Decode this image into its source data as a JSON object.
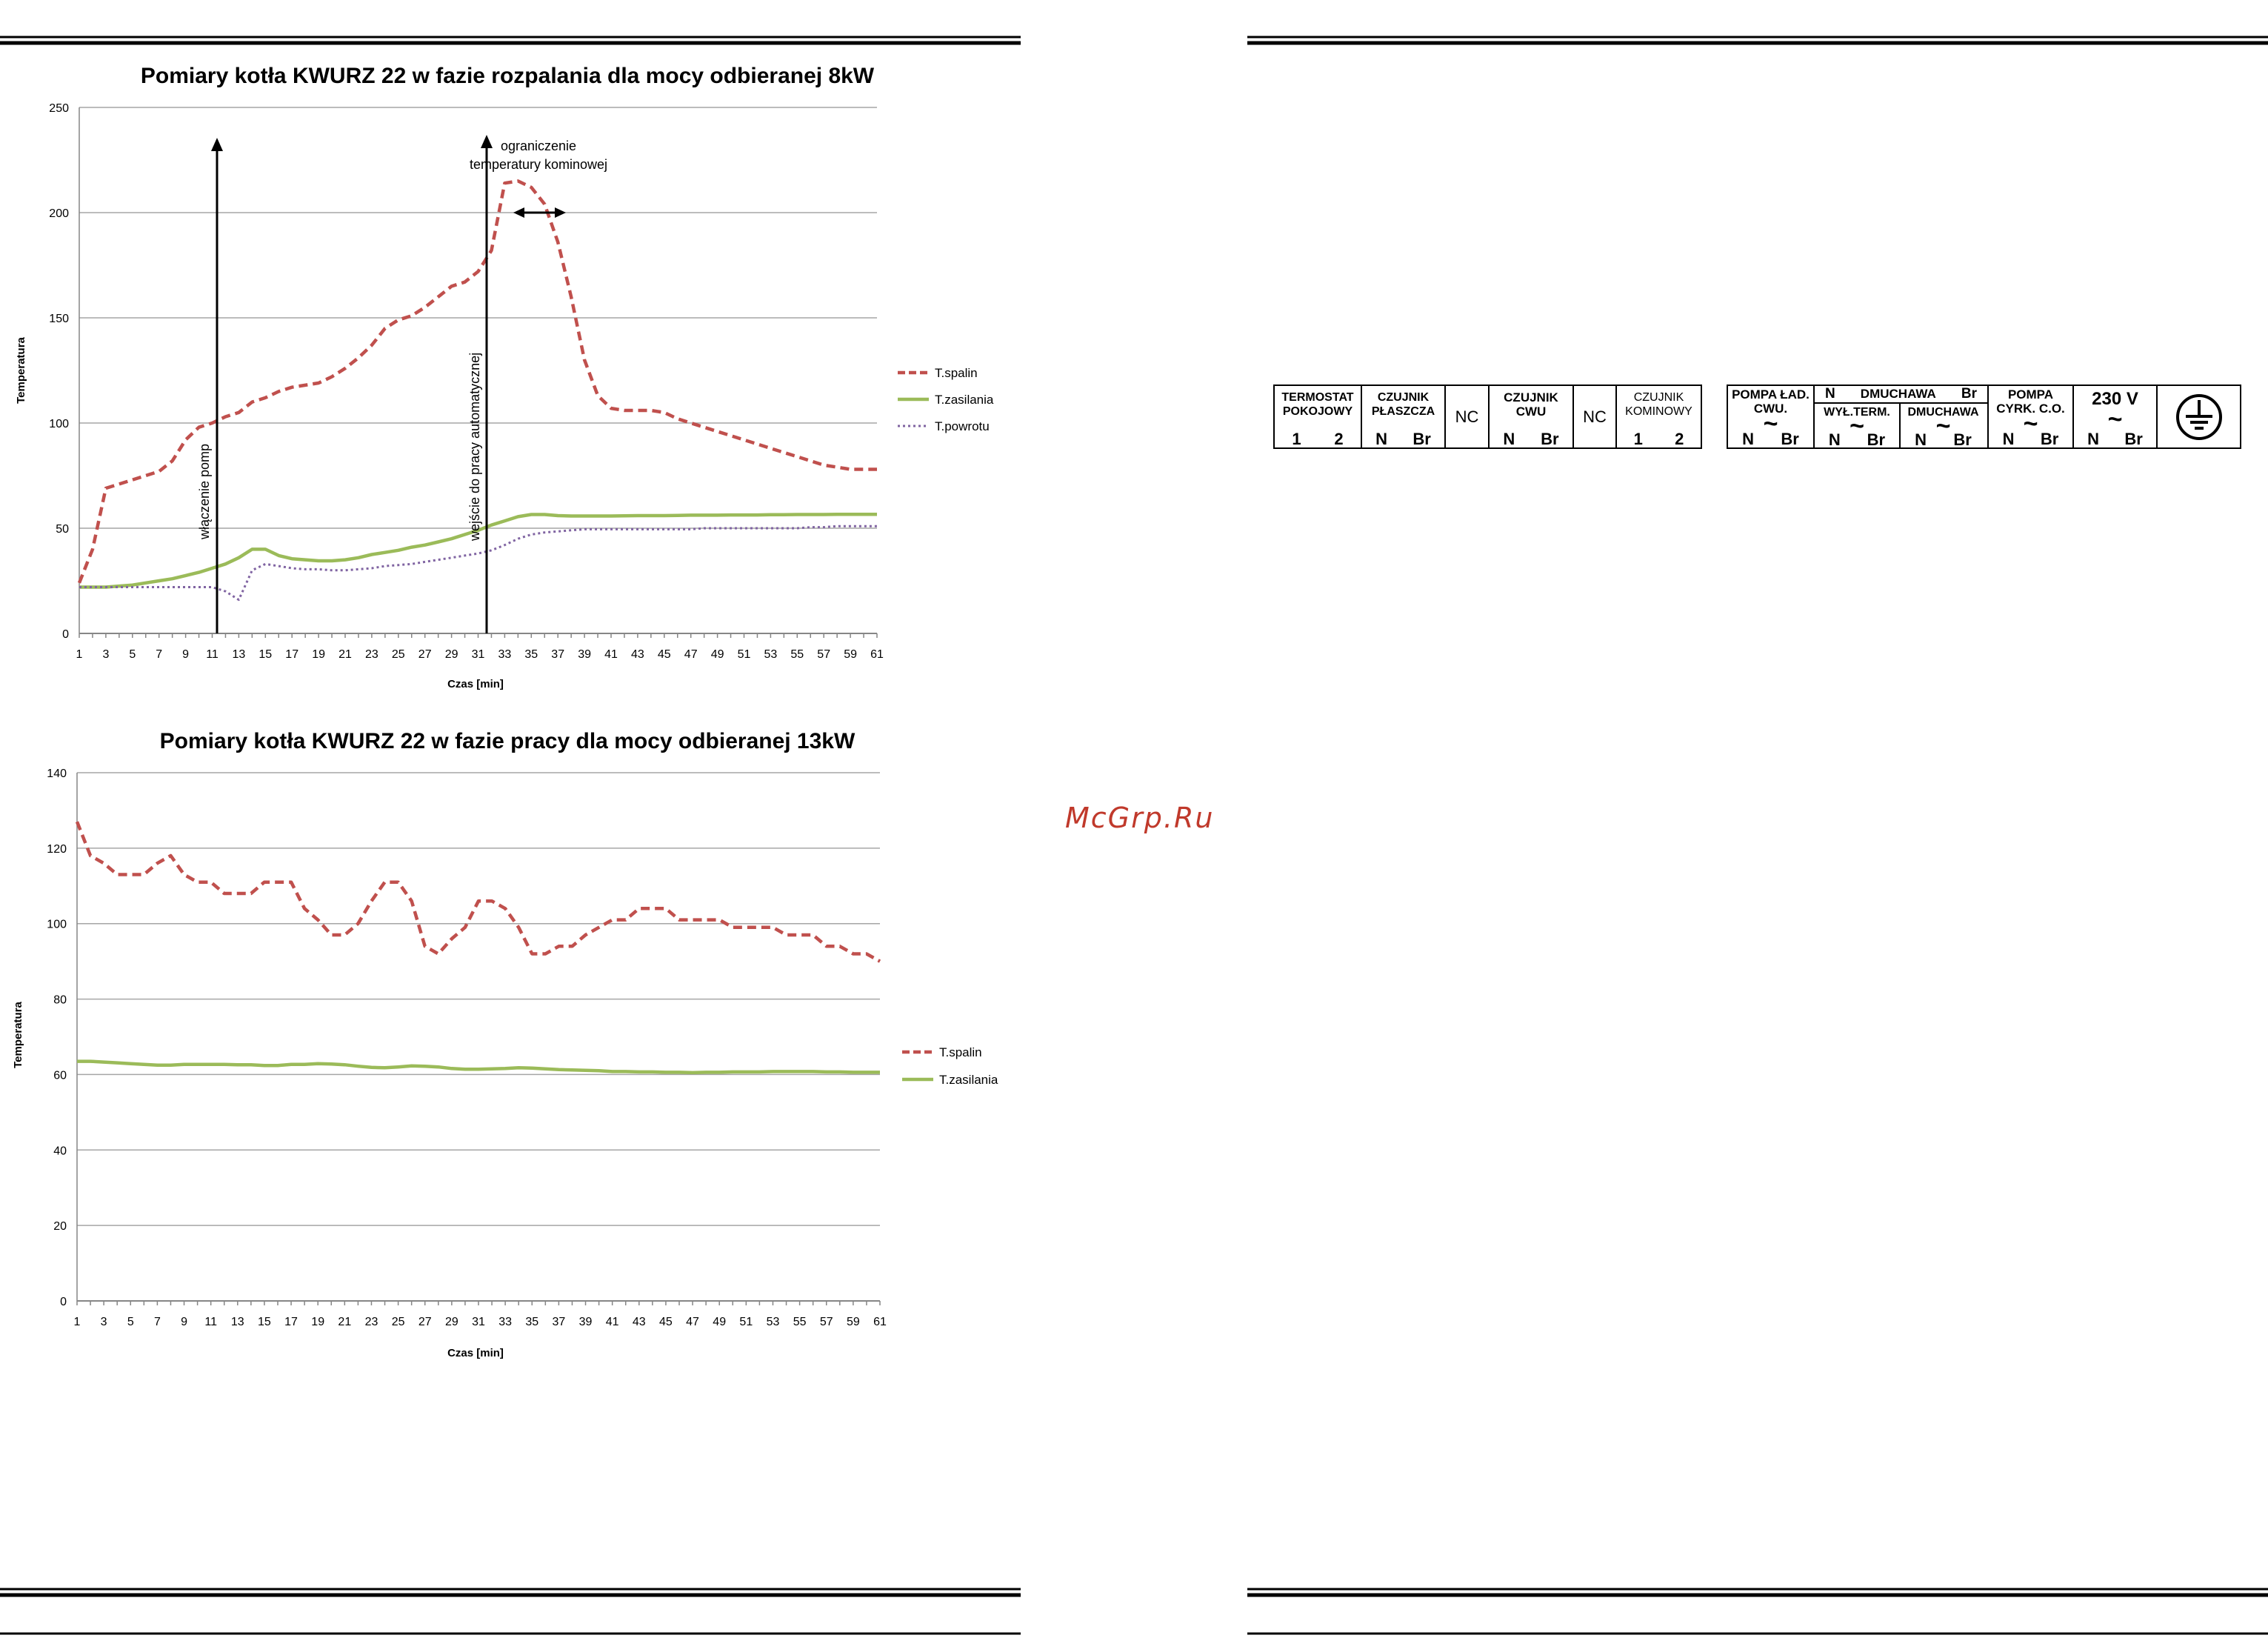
{
  "watermark": "McGrp.Ru",
  "chart_data": [
    {
      "type": "line",
      "title": "Pomiary kotła KWURZ 22 w fazie rozpalania dla mocy odbieranej 8kW",
      "xlabel": "Czas [min]",
      "ylabel": "Temperatura",
      "ylim": [
        0,
        250
      ],
      "yticks": [
        0,
        50,
        100,
        150,
        200,
        250
      ],
      "grid": true,
      "legend": "right",
      "x": [
        1,
        2,
        3,
        4,
        5,
        6,
        7,
        8,
        9,
        10,
        11,
        12,
        13,
        14,
        15,
        16,
        17,
        18,
        19,
        20,
        21,
        22,
        23,
        24,
        25,
        26,
        27,
        28,
        29,
        30,
        31,
        32,
        33,
        34,
        35,
        36,
        37,
        38,
        39,
        40,
        41,
        42,
        43,
        44,
        45,
        46,
        47,
        48,
        49,
        50,
        51,
        52,
        53,
        54,
        55,
        56,
        57,
        58,
        59,
        60,
        61
      ],
      "series": [
        {
          "name": "T.spalin",
          "color": "#c0504d",
          "dash": "12,7",
          "values": [
            24,
            40,
            69,
            71,
            73,
            75,
            77,
            82,
            92,
            98,
            100,
            103,
            105,
            110,
            112,
            115,
            117,
            118,
            119,
            122,
            126,
            131,
            137,
            145,
            149,
            151,
            155,
            160,
            165,
            167,
            172,
            182,
            214,
            215,
            212,
            204,
            186,
            160,
            130,
            113,
            107,
            106,
            106,
            106,
            105,
            102,
            100,
            98,
            96,
            94,
            92,
            90,
            88,
            86,
            84,
            82,
            80,
            79,
            78,
            78,
            78
          ]
        },
        {
          "name": "T.zasilania",
          "color": "#9bbb59",
          "dash": "",
          "values": [
            22,
            22,
            22,
            22.5,
            23,
            24,
            25,
            26,
            27.5,
            29,
            31,
            33,
            36,
            40,
            40,
            37,
            35.5,
            35,
            34.5,
            34.5,
            35,
            36,
            37.5,
            38.5,
            39.5,
            41,
            42,
            43.5,
            45,
            47,
            49,
            51.5,
            53.5,
            55.5,
            56.5,
            56.5,
            56,
            55.8,
            55.8,
            55.8,
            55.8,
            55.9,
            56,
            56,
            56,
            56.1,
            56.2,
            56.2,
            56.2,
            56.3,
            56.3,
            56.3,
            56.4,
            56.4,
            56.5,
            56.5,
            56.5,
            56.6,
            56.6,
            56.6,
            56.6
          ]
        },
        {
          "name": "T.powrotu",
          "color": "#8064a2",
          "dash": "3,4",
          "values": [
            22,
            22,
            22,
            22,
            22,
            22,
            22,
            22,
            22,
            22,
            22,
            20,
            16,
            30,
            33,
            32,
            31,
            30.5,
            30.5,
            30,
            30,
            30.5,
            31,
            32,
            32.5,
            33,
            34,
            35,
            36,
            37,
            38,
            39.5,
            42,
            45,
            47,
            48,
            48.5,
            49,
            49.5,
            49.5,
            49.5,
            49.5,
            49.5,
            49.5,
            49.5,
            49.5,
            49.5,
            50,
            50,
            50,
            50,
            50,
            50,
            50,
            50,
            50.5,
            50.5,
            51,
            51,
            51,
            51
          ]
        }
      ],
      "annotations": [
        {
          "text": "włączenie pomp",
          "x": 11
        },
        {
          "text": "wejście do pracy automatycznej",
          "x": 31
        },
        {
          "text": "ograniczenie temperatury kominowej",
          "x": 31
        }
      ]
    },
    {
      "type": "line",
      "title": "Pomiary kotła KWURZ 22 w fazie pracy dla mocy odbieranej 13kW",
      "xlabel": "Czas [min]",
      "ylabel": "Temperatura",
      "ylim": [
        0,
        140
      ],
      "yticks": [
        0,
        20,
        40,
        60,
        80,
        100,
        120,
        140
      ],
      "grid": true,
      "legend": "right",
      "x": [
        1,
        2,
        3,
        4,
        5,
        6,
        7,
        8,
        9,
        10,
        11,
        12,
        13,
        14,
        15,
        16,
        17,
        18,
        19,
        20,
        21,
        22,
        23,
        24,
        25,
        26,
        27,
        28,
        29,
        30,
        31,
        32,
        33,
        34,
        35,
        36,
        37,
        38,
        39,
        40,
        41,
        42,
        43,
        44,
        45,
        46,
        47,
        48,
        49,
        50,
        51,
        52,
        53,
        54,
        55,
        56,
        57,
        58,
        59,
        60,
        61
      ],
      "series": [
        {
          "name": "T.spalin",
          "color": "#c0504d",
          "dash": "12,7",
          "values": [
            127,
            118,
            116,
            113,
            113,
            113,
            116,
            118,
            113,
            111,
            111,
            108,
            108,
            108,
            111,
            111,
            111,
            104,
            101,
            97,
            97,
            100,
            106,
            111,
            111,
            106,
            94,
            92,
            96,
            99,
            106,
            106,
            104,
            99,
            92,
            92,
            94,
            94,
            97,
            99,
            101,
            101,
            104,
            104,
            104,
            101,
            101,
            101,
            101,
            99,
            99,
            99,
            99,
            97,
            97,
            97,
            94,
            94,
            92,
            92,
            90
          ]
        },
        {
          "name": "T.zasilania",
          "color": "#9bbb59",
          "dash": "",
          "values": [
            63.5,
            63.5,
            63.3,
            63.1,
            62.9,
            62.7,
            62.5,
            62.5,
            62.7,
            62.7,
            62.7,
            62.7,
            62.6,
            62.6,
            62.4,
            62.4,
            62.7,
            62.7,
            62.9,
            62.8,
            62.6,
            62.2,
            61.9,
            61.8,
            62,
            62.3,
            62.2,
            62,
            61.6,
            61.4,
            61.4,
            61.5,
            61.6,
            61.8,
            61.7,
            61.5,
            61.3,
            61.2,
            61.1,
            61,
            60.8,
            60.8,
            60.7,
            60.7,
            60.6,
            60.6,
            60.5,
            60.6,
            60.6,
            60.7,
            60.7,
            60.7,
            60.8,
            60.8,
            60.8,
            60.8,
            60.7,
            60.7,
            60.6,
            60.6,
            60.6
          ]
        }
      ]
    }
  ],
  "terminals_left": [
    {
      "top": "TERMOSTAT POKOJOWY",
      "pins": [
        "1",
        "2"
      ]
    },
    {
      "top": "CZUJNIK PŁASZCZA",
      "pins": [
        "N",
        "Br"
      ]
    },
    {
      "top": "NC",
      "pins": []
    },
    {
      "top": "CZUJNIK CWU",
      "pins": [
        "N",
        "Br"
      ]
    },
    {
      "top": "NC",
      "pins": []
    },
    {
      "top": "CZUJNIK KOMINOWY",
      "pins": [
        "1",
        "2"
      ]
    }
  ],
  "terminals_right": {
    "pompa_cwu": {
      "top": "POMPA ŁAD. CWU.",
      "pins": [
        "N",
        "Br"
      ]
    },
    "dmuchawa_header": {
      "n": "N",
      "label": "DMUCHAWA",
      "br": "Br"
    },
    "wyl_term": {
      "top": "WYŁ.TERM.",
      "pins": [
        "N",
        "Br"
      ]
    },
    "dmuchawa": {
      "top": "DMUCHAWA",
      "pins": [
        "N",
        "Br"
      ]
    },
    "pompa_co": {
      "top": "POMPA CYRK. C.O.",
      "pins": [
        "N",
        "Br"
      ]
    },
    "supply": {
      "top": "230 V",
      "pins": [
        "N",
        "Br"
      ]
    },
    "tilde": "~",
    "ground": "ground-symbol"
  }
}
